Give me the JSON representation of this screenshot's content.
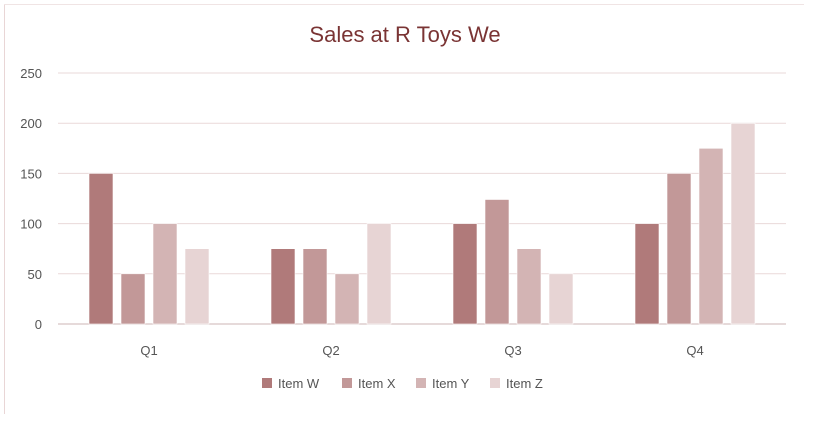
{
  "chart_data": {
    "type": "bar",
    "title": "Sales at R Toys We",
    "categories": [
      "Q1",
      "Q2",
      "Q3",
      "Q4"
    ],
    "series": [
      {
        "name": "Item W",
        "values": [
          150,
          75,
          100,
          100
        ],
        "color": "#b07a7a"
      },
      {
        "name": "Item X",
        "values": [
          50,
          75,
          124,
          150
        ],
        "color": "#c29898"
      },
      {
        "name": "Item Y",
        "values": [
          100,
          50,
          75,
          175
        ],
        "color": "#d3b4b4"
      },
      {
        "name": "Item Z",
        "values": [
          75,
          100,
          50,
          200
        ],
        "color": "#e7d4d4"
      }
    ],
    "yticks": [
      "0",
      "50",
      "100",
      "150",
      "200",
      "250"
    ],
    "ylim": [
      0,
      250
    ],
    "grid": true,
    "legend_position": "bottom",
    "xlabel": "",
    "ylabel": ""
  }
}
